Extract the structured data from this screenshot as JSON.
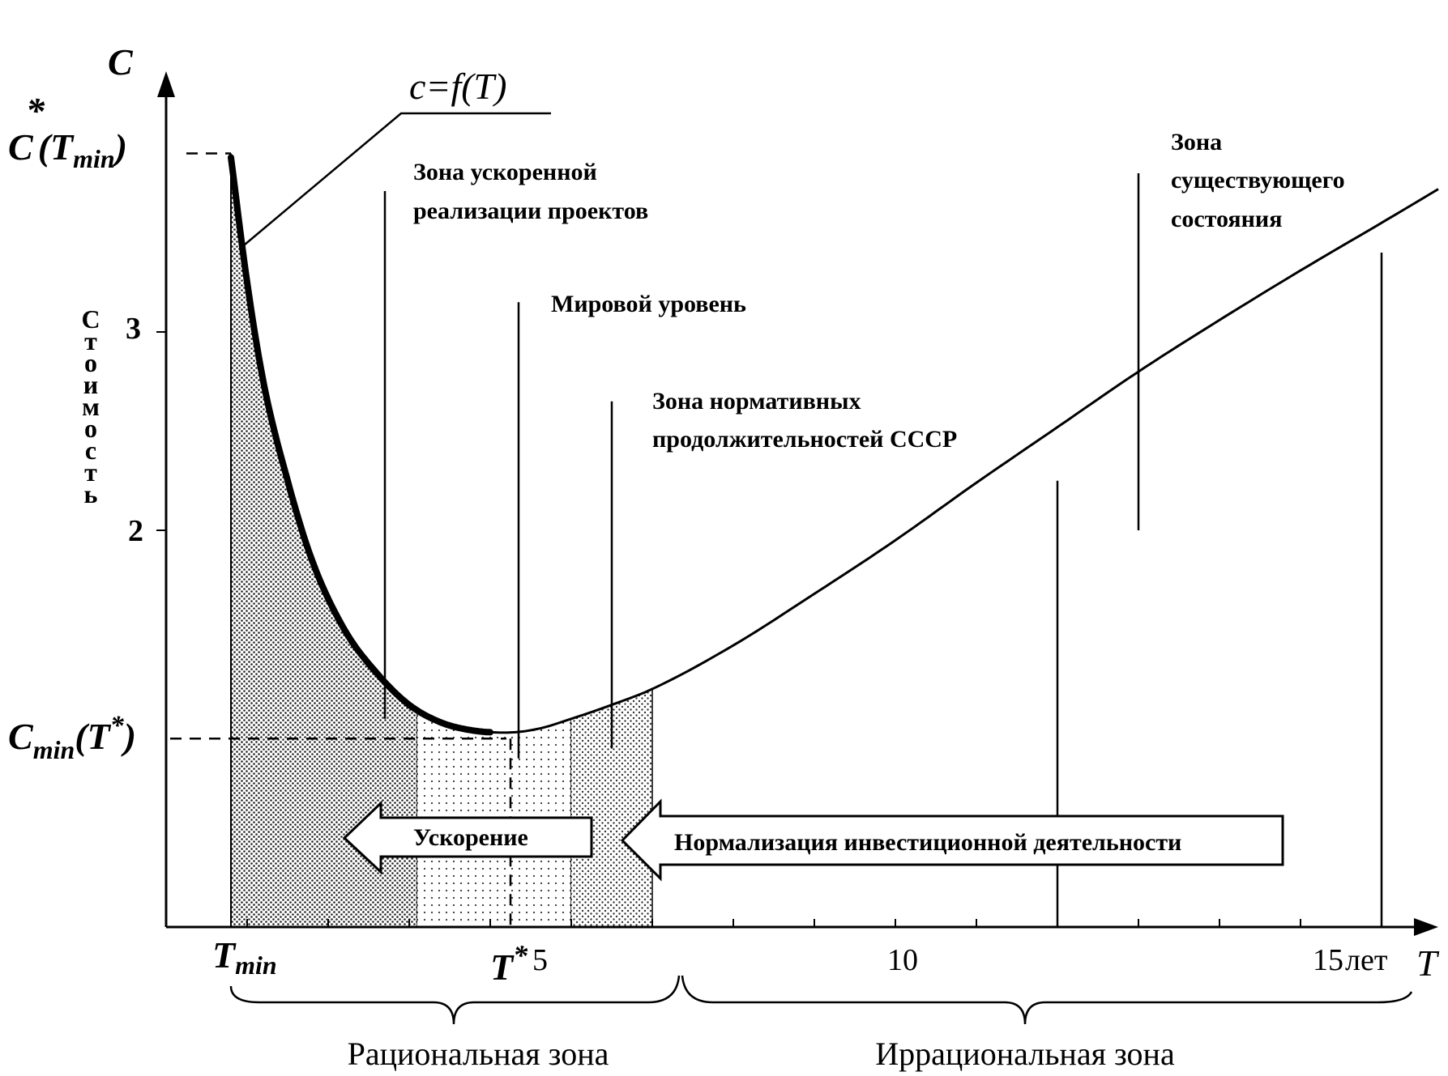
{
  "chart_data": {
    "type": "line",
    "y_axis_symbol": "C",
    "x_axis_symbol": "T",
    "ylabel": "Стоимость",
    "formula": "c=f(T)",
    "y_ticks": [
      "2",
      "3"
    ],
    "x_ticks": [
      {
        "label": "T",
        "sub": "min",
        "value": 0.8
      },
      {
        "label": "T",
        "sup": "*",
        "value": 4.25
      },
      {
        "label": "5",
        "value": 5
      },
      {
        "label": "10",
        "value": 10
      },
      {
        "label": "15",
        "value": 15
      }
    ],
    "x_unit": "лет",
    "y_markers": {
      "c_star_tmin": {
        "value": 3.9
      },
      "c_min": {
        "value": 0.95
      }
    },
    "xlim": [
      0,
      16
    ],
    "ylim": [
      0,
      4.3
    ],
    "curve": {
      "x": [
        0.8,
        1.0,
        1.2,
        1.5,
        1.8,
        2.2,
        2.6,
        3.0,
        3.4,
        3.8,
        4.2,
        4.6,
        5.0,
        5.5,
        6.0,
        7.0,
        8.0,
        9.0,
        10.0,
        11.0,
        12.0,
        13.0,
        14.0,
        15.0,
        15.7
      ],
      "y": [
        3.88,
        3.25,
        2.75,
        2.25,
        1.85,
        1.5,
        1.28,
        1.12,
        1.03,
        0.99,
        0.98,
        1.0,
        1.05,
        1.12,
        1.2,
        1.42,
        1.68,
        1.95,
        2.24,
        2.52,
        2.8,
        3.06,
        3.31,
        3.55,
        3.72
      ]
    },
    "vertical_lines": [
      {
        "x": 2.7,
        "from": 1.05,
        "to": 3.71
      },
      {
        "x": 4.35,
        "from": 0.85,
        "to": 3.15
      },
      {
        "x": 5.5,
        "from": 0.9,
        "to": 2.65
      },
      {
        "x": 11.0,
        "from": 0,
        "to": 2.25
      },
      {
        "x": 12.0,
        "from": 2.0,
        "to": 3.8
      },
      {
        "x": 15.0,
        "from": 0,
        "to": 3.4
      }
    ],
    "shaded_regions": [
      {
        "from": 0.8,
        "to": 3.1,
        "density": "dense"
      },
      {
        "from": 3.1,
        "to": 5.0,
        "density": "sparse"
      },
      {
        "from": 5.0,
        "to": 6.0,
        "density": "medium"
      }
    ],
    "annotations": [
      {
        "text": "Зона ускоренной",
        "line2": "реализации проектов"
      },
      {
        "text": "Мировой уровень"
      },
      {
        "text": "Зона нормативных",
        "line2": "продолжительностей СССР"
      },
      {
        "text": "Зона",
        "line2": "существующего",
        "line3": "состояния"
      }
    ],
    "arrows": [
      {
        "text": "Ускорение",
        "direction": "left"
      },
      {
        "text": "Нормализация инвестиционной деятельности",
        "direction": "left"
      }
    ],
    "zones": [
      {
        "text": "Рациональная зона"
      },
      {
        "text": "Иррациональная зона"
      }
    ]
  }
}
